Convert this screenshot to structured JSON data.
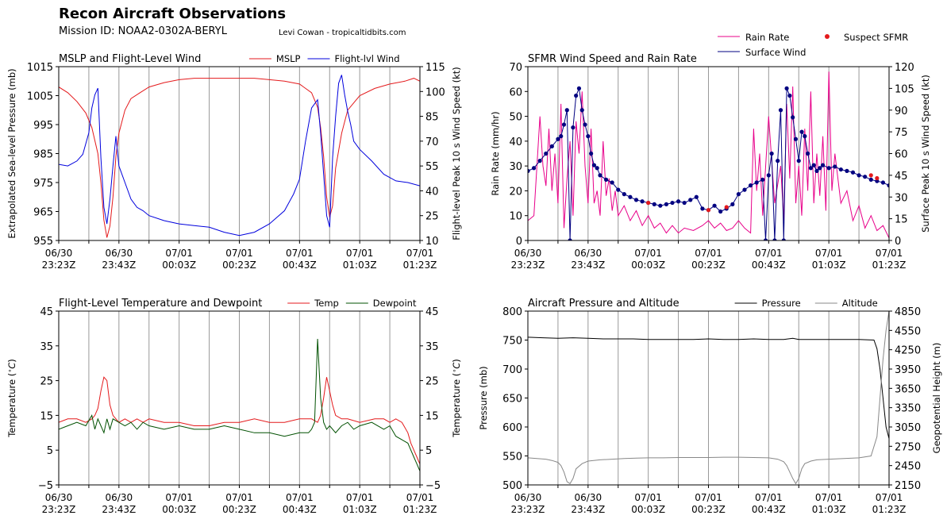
{
  "header": {
    "title": "Recon Aircraft Observations",
    "mission_id": "Mission ID: NOAA2-0302A-BERYL",
    "credit": "Levi Cowan - tropicaltidbits.com"
  },
  "time_ticks": [
    {
      "l1": "06/30",
      "l2": "23:23Z"
    },
    {
      "l1": "06/30",
      "l2": "23:43Z"
    },
    {
      "l1": "07/01",
      "l2": "00:03Z"
    },
    {
      "l1": "07/01",
      "l2": "00:23Z"
    },
    {
      "l1": "07/01",
      "l2": "00:43Z"
    },
    {
      "l1": "07/01",
      "l2": "01:03Z"
    },
    {
      "l1": "07/01",
      "l2": "01:23Z"
    }
  ],
  "colors": {
    "mslp": "#e41a1c",
    "flwind": "#0000dd",
    "rain": "#e8008a",
    "sfmr": "#000080",
    "suspect": "#e41a1c",
    "temp": "#e41a1c",
    "dew": "#005000",
    "pressure": "#000000",
    "altitude": "#888888",
    "grid": "#999999"
  },
  "chart_data": [
    {
      "type": "line",
      "title": "MSLP and Flight-Level Wind",
      "x_range_minutes": [
        0,
        120
      ],
      "ylabel": "Extrapolated Sea-level Pressure (mb)",
      "ylim": [
        955,
        1015
      ],
      "yticks": [
        955,
        965,
        975,
        985,
        995,
        1005,
        1015
      ],
      "ylabel2": "Flight-level Peak 10 s Wind Speed (kt)",
      "ylim2": [
        10,
        115
      ],
      "yticks2": [
        10,
        25,
        40,
        55,
        70,
        85,
        100,
        115
      ],
      "legend": "top-right",
      "series": [
        {
          "name": "MSLP",
          "axis": "left",
          "x": [
            0,
            3,
            6,
            9,
            11,
            13,
            14,
            15,
            16,
            17,
            18,
            19,
            20,
            22,
            24,
            27,
            30,
            35,
            40,
            45,
            50,
            55,
            60,
            65,
            70,
            75,
            80,
            84,
            86,
            87,
            88,
            89,
            90,
            91,
            92,
            94,
            96,
            100,
            105,
            110,
            115,
            118,
            120
          ],
          "y": [
            1008,
            1006,
            1003,
            999,
            994,
            985,
            975,
            962,
            956,
            960,
            970,
            984,
            992,
            1000,
            1004,
            1006,
            1008,
            1009.5,
            1010.5,
            1011,
            1011,
            1011,
            1011,
            1011,
            1010.5,
            1010,
            1009,
            1006,
            1001,
            994,
            984,
            970,
            963,
            967,
            980,
            992,
            1000,
            1005,
            1007.5,
            1009,
            1010,
            1011,
            1010
          ]
        },
        {
          "name": "Flight-lvl Wind",
          "axis": "right",
          "x": [
            0,
            3,
            6,
            8,
            10,
            11,
            12,
            13,
            14,
            15,
            16,
            17,
            18,
            19,
            20,
            22,
            24,
            26,
            28,
            30,
            35,
            40,
            45,
            50,
            55,
            60,
            65,
            70,
            75,
            78,
            80,
            82,
            84,
            86,
            87,
            88,
            89,
            90,
            91,
            92,
            93,
            94,
            95,
            96,
            97,
            98,
            100,
            104,
            108,
            112,
            116,
            120
          ],
          "y": [
            56,
            55,
            58,
            62,
            75,
            90,
            98,
            102,
            60,
            30,
            20,
            35,
            55,
            73,
            55,
            45,
            35,
            30,
            28,
            25,
            22,
            20,
            19,
            18,
            15,
            13,
            15,
            20,
            28,
            38,
            47,
            70,
            90,
            95,
            75,
            50,
            25,
            18,
            60,
            85,
            105,
            110,
            98,
            88,
            80,
            70,
            65,
            58,
            50,
            46,
            45,
            43
          ]
        }
      ]
    },
    {
      "type": "line",
      "title": "SFMR Wind Speed and Rain Rate",
      "x_range_minutes": [
        0,
        120
      ],
      "ylabel": "Rain Rate (mm/hr)",
      "ylim": [
        0,
        70
      ],
      "yticks": [
        0,
        10,
        20,
        30,
        40,
        50,
        60,
        70
      ],
      "ylabel2": "Surface Peak 10 s Wind Speed (kt)",
      "ylim2": [
        0,
        120
      ],
      "yticks2": [
        0,
        15,
        30,
        45,
        60,
        75,
        90,
        105,
        120
      ],
      "legend": "above-right",
      "series": [
        {
          "name": "Rain Rate",
          "axis": "left",
          "x": [
            0,
            2,
            4,
            5,
            6,
            7,
            8,
            9,
            10,
            11,
            12,
            13,
            14,
            15,
            16,
            17,
            18,
            19,
            20,
            21,
            22,
            23,
            24,
            25,
            26,
            27,
            28,
            29,
            30,
            32,
            34,
            36,
            38,
            40,
            42,
            44,
            46,
            48,
            50,
            52,
            55,
            58,
            60,
            62,
            64,
            66,
            68,
            70,
            72,
            74,
            75,
            76,
            77,
            78,
            80,
            82,
            84,
            85,
            86,
            87,
            88,
            89,
            90,
            91,
            92,
            93,
            94,
            95,
            96,
            97,
            98,
            99,
            100,
            101,
            102,
            104,
            106,
            108,
            110,
            112,
            114,
            116,
            118,
            120
          ],
          "y": [
            8,
            10,
            50,
            30,
            22,
            45,
            20,
            35,
            15,
            55,
            5,
            25,
            40,
            10,
            48,
            35,
            60,
            30,
            15,
            45,
            15,
            20,
            10,
            40,
            18,
            25,
            12,
            20,
            10,
            14,
            8,
            12,
            6,
            10,
            5,
            7,
            3,
            6,
            3,
            5,
            4,
            6,
            8,
            5,
            7,
            4,
            5,
            8,
            5,
            3,
            45,
            20,
            35,
            10,
            50,
            15,
            30,
            8,
            55,
            25,
            62,
            15,
            30,
            10,
            45,
            20,
            60,
            15,
            35,
            18,
            42,
            12,
            68,
            20,
            35,
            15,
            20,
            8,
            14,
            5,
            10,
            4,
            6,
            1
          ]
        },
        {
          "name": "Surface Wind",
          "axis": "right",
          "x": [
            0,
            2,
            4,
            6,
            8,
            10,
            11,
            12,
            13,
            14,
            15,
            16,
            17,
            18,
            19,
            20,
            21,
            22,
            23,
            24,
            26,
            28,
            30,
            32,
            34,
            36,
            38,
            40,
            42,
            44,
            46,
            48,
            50,
            52,
            54,
            56,
            58,
            60,
            62,
            64,
            66,
            68,
            70,
            72,
            74,
            76,
            78,
            79,
            80,
            81,
            82,
            83,
            84,
            85,
            86,
            87,
            88,
            89,
            90,
            91,
            92,
            93,
            94,
            95,
            96,
            97,
            98,
            100,
            102,
            104,
            106,
            108,
            110,
            112,
            114,
            116,
            118,
            120
          ],
          "y": [
            48,
            50,
            55,
            60,
            65,
            70,
            72,
            80,
            90,
            0,
            78,
            100,
            105,
            90,
            80,
            72,
            60,
            52,
            50,
            45,
            42,
            40,
            35,
            32,
            30,
            28,
            27,
            26,
            25,
            24,
            25,
            26,
            27,
            26,
            28,
            30,
            22,
            21,
            24,
            20,
            22,
            25,
            32,
            35,
            38,
            40,
            42,
            0,
            45,
            60,
            0,
            55,
            90,
            0,
            105,
            100,
            85,
            70,
            55,
            75,
            72,
            60,
            50,
            52,
            48,
            50,
            52,
            50,
            51,
            49,
            48,
            47,
            45,
            44,
            42,
            41,
            40,
            38
          ]
        },
        {
          "name": "Suspect SFMR",
          "axis": "right",
          "x": [
            40,
            60,
            66,
            114,
            116
          ],
          "y": [
            26,
            21,
            23,
            45,
            43
          ]
        }
      ]
    },
    {
      "type": "line",
      "title": "Flight-Level Temperature and Dewpoint",
      "x_range_minutes": [
        0,
        120
      ],
      "ylabel": "Temperature ($^\\circ C$)",
      "ylim": [
        -5,
        45
      ],
      "yticks": [
        -5,
        5,
        15,
        25,
        35,
        45
      ],
      "ylabel2": "Temperature ($^\\circ C$)",
      "ylim2": [
        -5,
        45
      ],
      "yticks2": [
        -5,
        5,
        15,
        25,
        35,
        45
      ],
      "legend": "top-right",
      "series": [
        {
          "name": "Temp",
          "axis": "left",
          "x": [
            0,
            3,
            6,
            9,
            11,
            12,
            13,
            14,
            15,
            16,
            17,
            18,
            19,
            20,
            22,
            24,
            26,
            28,
            30,
            35,
            40,
            45,
            50,
            55,
            60,
            65,
            70,
            75,
            80,
            84,
            86,
            87,
            88,
            89,
            90,
            91,
            92,
            94,
            96,
            100,
            105,
            108,
            110,
            112,
            114,
            116,
            117,
            118,
            119,
            120
          ],
          "y": [
            13,
            14,
            14,
            13,
            14,
            15,
            17,
            22,
            26,
            25,
            18,
            15,
            14,
            13,
            14,
            13,
            14,
            13,
            14,
            13,
            13,
            12,
            12,
            13,
            13,
            14,
            13,
            13,
            14,
            14,
            13,
            15,
            20,
            26,
            22,
            18,
            15,
            14,
            14,
            13,
            14,
            14,
            13,
            14,
            13,
            10,
            7,
            5,
            3,
            1
          ]
        },
        {
          "name": "Dewpoint",
          "axis": "left",
          "x": [
            0,
            3,
            6,
            9,
            11,
            12,
            13,
            14,
            15,
            16,
            17,
            18,
            20,
            22,
            24,
            26,
            28,
            30,
            35,
            40,
            45,
            50,
            55,
            60,
            65,
            70,
            75,
            80,
            83,
            84,
            85,
            86,
            87,
            88,
            89,
            90,
            92,
            94,
            96,
            98,
            100,
            104,
            108,
            110,
            112,
            114,
            116,
            117,
            118,
            119,
            120
          ],
          "y": [
            11,
            12,
            13,
            12,
            15,
            11,
            14,
            12,
            10,
            14,
            11,
            14,
            13,
            12,
            13,
            11,
            13,
            12,
            11,
            12,
            11,
            11,
            12,
            11,
            10,
            10,
            9,
            10,
            10,
            11,
            13,
            37,
            20,
            13,
            11,
            12,
            10,
            12,
            13,
            11,
            12,
            13,
            11,
            12,
            9,
            8,
            7,
            5,
            3,
            1,
            -1
          ]
        }
      ]
    },
    {
      "type": "line",
      "title": "Aircraft Pressure and Altitude",
      "x_range_minutes": [
        0,
        120
      ],
      "ylabel": "Pressure (mb)",
      "ylim": [
        500,
        800
      ],
      "yticks": [
        500,
        550,
        600,
        650,
        700,
        750,
        800
      ],
      "ylabel2": "Geopotential Height (m)",
      "ylim2": [
        2150,
        4850
      ],
      "yticks2": [
        2150,
        2450,
        2750,
        3050,
        3350,
        3650,
        3950,
        4250,
        4550,
        4850
      ],
      "legend": "top-right",
      "series": [
        {
          "name": "Pressure",
          "axis": "left",
          "x": [
            0,
            5,
            10,
            15,
            20,
            25,
            30,
            35,
            40,
            45,
            50,
            55,
            60,
            65,
            70,
            75,
            80,
            85,
            88,
            90,
            95,
            100,
            105,
            110,
            115,
            116,
            117,
            118,
            119,
            120
          ],
          "y": [
            755,
            754,
            753,
            754,
            753,
            752,
            752,
            752,
            751,
            751,
            751,
            751,
            752,
            751,
            751,
            752,
            751,
            751,
            753,
            751,
            751,
            751,
            751,
            751,
            750,
            735,
            700,
            650,
            600,
            580
          ]
        },
        {
          "name": "Altitude",
          "axis": "right",
          "x": [
            0,
            3,
            6,
            8,
            10,
            11,
            12,
            13,
            14,
            15,
            16,
            18,
            20,
            24,
            28,
            32,
            36,
            40,
            45,
            50,
            55,
            60,
            65,
            70,
            75,
            80,
            83,
            85,
            86,
            87,
            88,
            89,
            90,
            91,
            92,
            94,
            96,
            100,
            105,
            110,
            114,
            116,
            117,
            118,
            119,
            120
          ],
          "y": [
            2570,
            2560,
            2550,
            2530,
            2500,
            2450,
            2350,
            2200,
            2170,
            2250,
            2400,
            2480,
            2520,
            2540,
            2550,
            2560,
            2565,
            2570,
            2570,
            2575,
            2575,
            2575,
            2580,
            2580,
            2575,
            2570,
            2550,
            2510,
            2450,
            2350,
            2250,
            2170,
            2250,
            2400,
            2480,
            2520,
            2540,
            2550,
            2560,
            2570,
            2600,
            2900,
            3500,
            4100,
            4550,
            4850
          ]
        }
      ]
    }
  ]
}
